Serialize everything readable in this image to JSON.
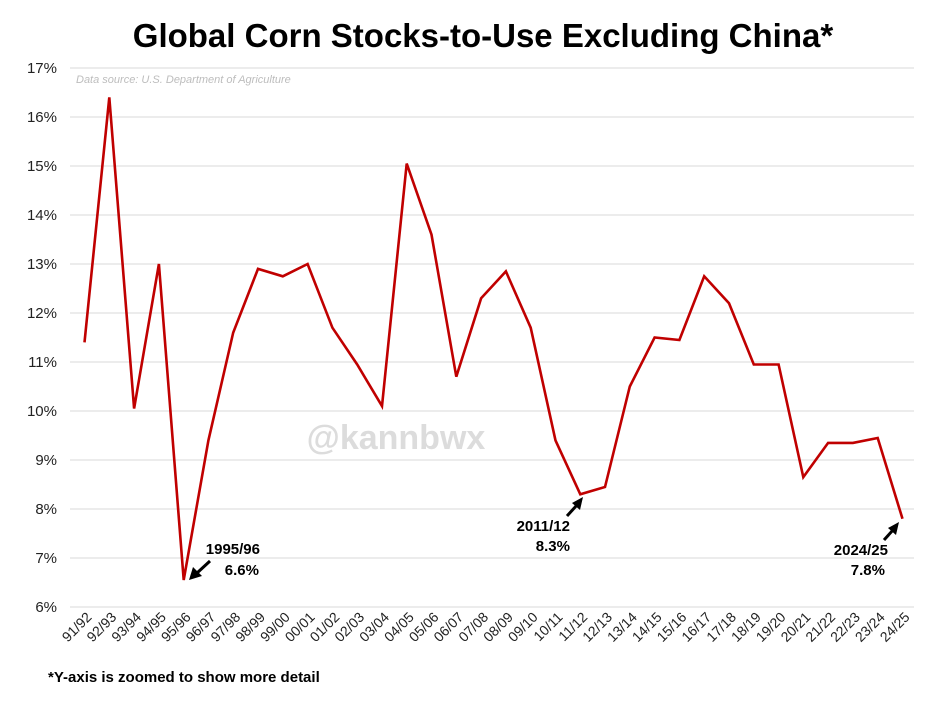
{
  "chart_data": {
    "type": "line",
    "title": "Global Corn Stocks-to-Use Excluding China*",
    "source_note": "Data source: U.S. Department of Agriculture",
    "watermark": "@kannbwx",
    "footnote": "*Y-axis is zoomed to show more detail",
    "ylim": [
      6,
      17
    ],
    "yticks": [
      "6%",
      "7%",
      "8%",
      "9%",
      "10%",
      "11%",
      "12%",
      "13%",
      "14%",
      "15%",
      "16%",
      "17%"
    ],
    "grid": true,
    "series_color": "#c00000",
    "categories": [
      "91/92",
      "92/93",
      "93/94",
      "94/95",
      "95/96",
      "96/97",
      "97/98",
      "98/99",
      "99/00",
      "00/01",
      "01/02",
      "02/03",
      "03/04",
      "04/05",
      "05/06",
      "06/07",
      "07/08",
      "08/09",
      "09/10",
      "10/11",
      "11/12",
      "12/13",
      "13/14",
      "14/15",
      "15/16",
      "16/17",
      "17/18",
      "18/19",
      "19/20",
      "20/21",
      "21/22",
      "22/23",
      "23/24",
      "24/25"
    ],
    "values": [
      11.4,
      16.4,
      10.05,
      13.0,
      6.55,
      9.4,
      11.6,
      12.9,
      12.75,
      13.0,
      11.7,
      10.95,
      10.1,
      15.05,
      13.6,
      10.7,
      12.3,
      12.85,
      11.7,
      9.4,
      8.3,
      8.45,
      10.5,
      11.5,
      11.45,
      12.75,
      12.2,
      10.95,
      10.95,
      8.65,
      9.35,
      9.35,
      9.45,
      7.8
    ],
    "annotations": [
      {
        "label": "1995/96",
        "value_label": "6.6%",
        "category_index": 4
      },
      {
        "label": "2011/12",
        "value_label": "8.3%",
        "category_index": 20
      },
      {
        "label": "2024/25",
        "value_label": "7.8%",
        "category_index": 33
      }
    ]
  }
}
